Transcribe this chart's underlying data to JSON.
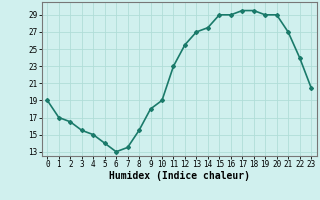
{
  "x": [
    0,
    1,
    2,
    3,
    4,
    5,
    6,
    7,
    8,
    9,
    10,
    11,
    12,
    13,
    14,
    15,
    16,
    17,
    18,
    19,
    20,
    21,
    22,
    23
  ],
  "y": [
    19,
    17,
    16.5,
    15.5,
    15,
    14,
    13,
    13.5,
    15.5,
    18,
    19,
    23,
    25.5,
    27,
    27.5,
    29,
    29,
    29.5,
    29.5,
    29,
    29,
    27,
    24,
    20.5
  ],
  "line_color": "#1a7a6a",
  "marker": "D",
  "marker_size": 2.0,
  "bg_color": "#d0f0ee",
  "grid_color": "#b0ddd8",
  "xlabel": "Humidex (Indice chaleur)",
  "xlim": [
    -0.5,
    23.5
  ],
  "ylim": [
    12.5,
    30.5
  ],
  "yticks": [
    13,
    15,
    17,
    19,
    21,
    23,
    25,
    27,
    29
  ],
  "xticks": [
    0,
    1,
    2,
    3,
    4,
    5,
    6,
    7,
    8,
    9,
    10,
    11,
    12,
    13,
    14,
    15,
    16,
    17,
    18,
    19,
    20,
    21,
    22,
    23
  ],
  "tick_fontsize": 5.5,
  "xlabel_fontsize": 7.0,
  "linewidth": 1.2
}
